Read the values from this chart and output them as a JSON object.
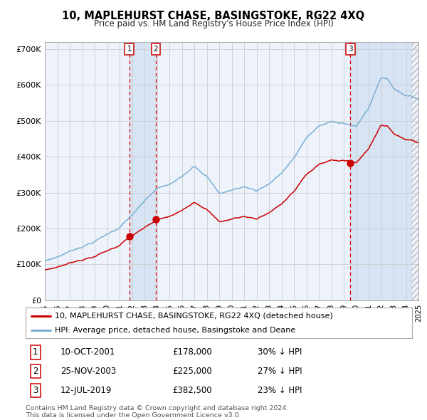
{
  "title": "10, MAPLEHURST CHASE, BASINGSTOKE, RG22 4XQ",
  "subtitle": "Price paid vs. HM Land Registry's House Price Index (HPI)",
  "ylim": [
    0,
    720000
  ],
  "yticks": [
    0,
    100000,
    200000,
    300000,
    400000,
    500000,
    600000,
    700000
  ],
  "ytick_labels": [
    "£0",
    "£100K",
    "£200K",
    "£300K",
    "£400K",
    "£500K",
    "£600K",
    "£700K"
  ],
  "hpi_color": "#7bafd4",
  "price_color": "#cc0000",
  "bg_color": "#ffffff",
  "grid_color": "#cccccc",
  "plot_bg_color": "#edf2fb",
  "sale1_year": 2001.78,
  "sale1_price": 178000,
  "sale1_label": "1",
  "sale1_date": "10-OCT-2001",
  "sale1_pct": "30% ↓ HPI",
  "sale2_year": 2003.9,
  "sale2_price": 225000,
  "sale2_label": "2",
  "sale2_date": "25-NOV-2003",
  "sale2_pct": "27% ↓ HPI",
  "sale3_year": 2019.53,
  "sale3_price": 382500,
  "sale3_label": "3",
  "sale3_date": "12-JUL-2019",
  "sale3_pct": "23% ↓ HPI",
  "legend_label1": "10, MAPLEHURST CHASE, BASINGSTOKE, RG22 4XQ (detached house)",
  "legend_label2": "HPI: Average price, detached house, Basingstoke and Deane",
  "footnote1": "Contains HM Land Registry data © Crown copyright and database right 2024.",
  "footnote2": "This data is licensed under the Open Government Licence v3.0."
}
